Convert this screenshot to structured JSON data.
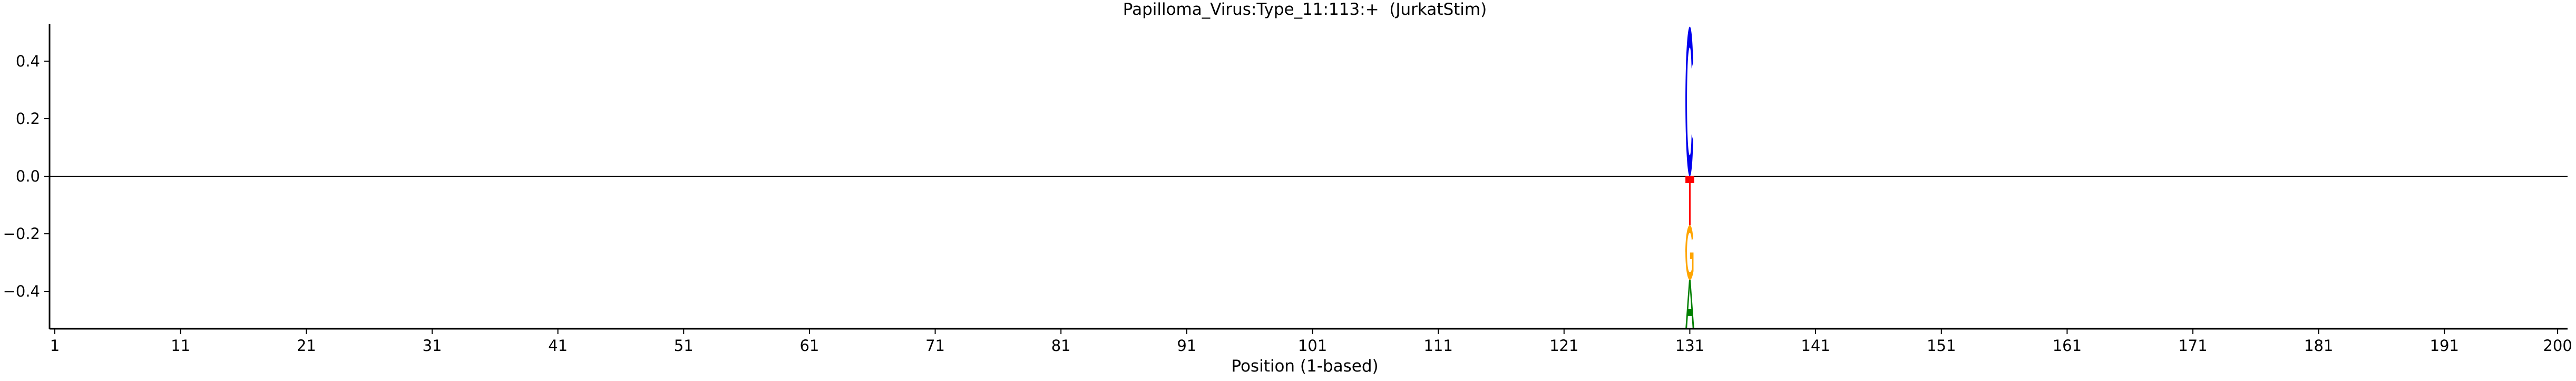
{
  "chart_data": {
    "type": "sequence-logo",
    "title": "Papilloma_Virus:Type_11:113:+  (JurkatStim)",
    "xlabel": "Position (1-based)",
    "ylabel": "",
    "xlim": [
      1,
      200
    ],
    "ylim": [
      -0.53,
      0.53
    ],
    "x_ticks": [
      1,
      11,
      21,
      31,
      41,
      51,
      61,
      71,
      81,
      91,
      101,
      111,
      121,
      131,
      141,
      151,
      161,
      171,
      181,
      191,
      200
    ],
    "y_ticks": [
      -0.4,
      -0.2,
      0.0,
      0.2,
      0.4
    ],
    "y_tick_labels": [
      "−0.4",
      "−0.2",
      "0.0",
      "0.2",
      "0.4"
    ],
    "zero_line": true,
    "grid": false,
    "letters": [
      {
        "position": 131,
        "letter": "C",
        "bottom": 0.0,
        "top": 0.52,
        "color": "#0000ee"
      },
      {
        "position": 131,
        "letter": "T",
        "bottom": -0.17,
        "top": 0.0,
        "color": "#ff0000"
      },
      {
        "position": 131,
        "letter": "G",
        "bottom": -0.36,
        "top": -0.17,
        "color": "#ffa500"
      },
      {
        "position": 131,
        "letter": "A",
        "bottom": -0.53,
        "top": -0.36,
        "color": "#008000"
      }
    ]
  }
}
